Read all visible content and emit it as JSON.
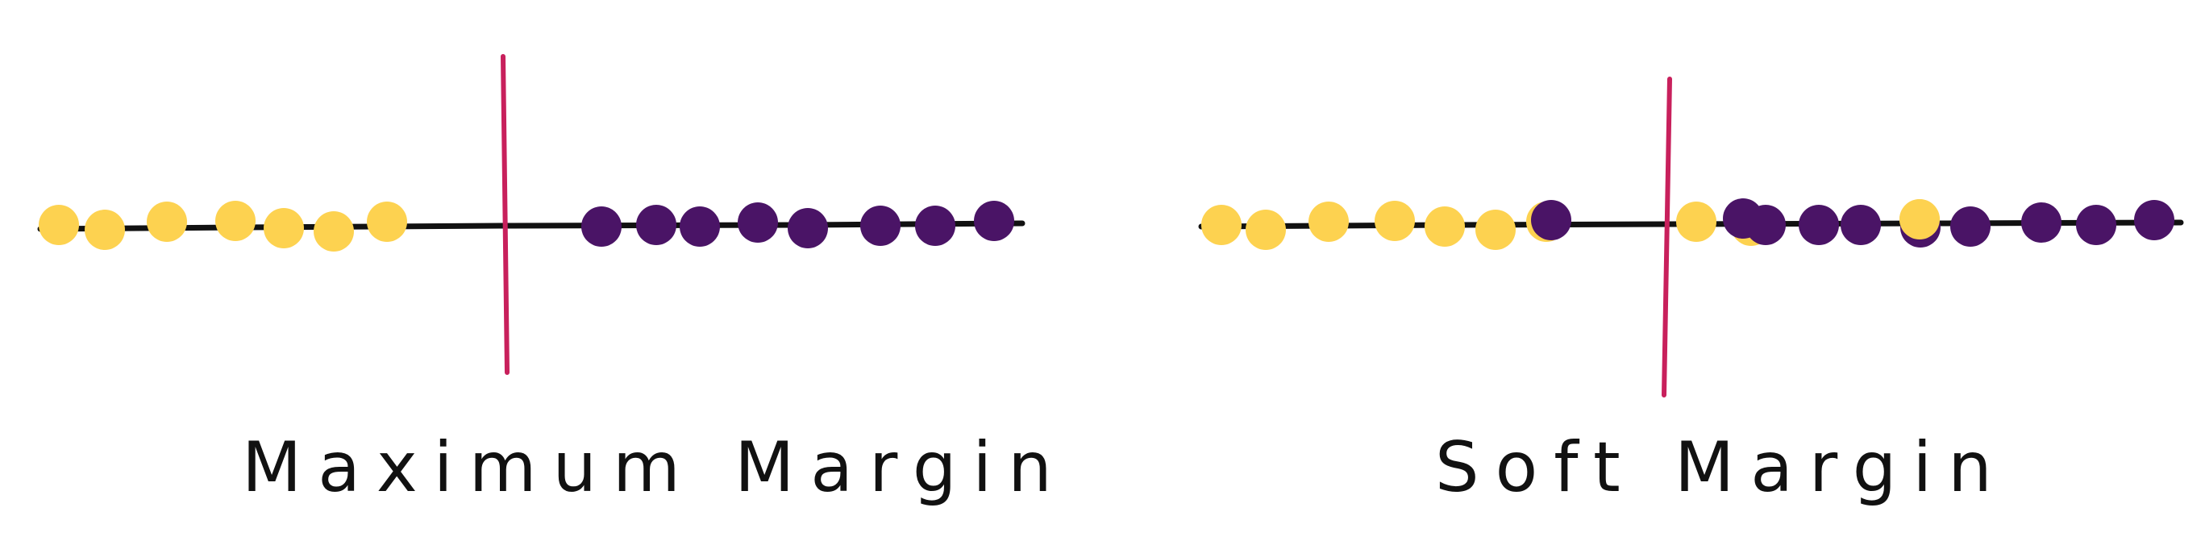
{
  "colors": {
    "yellow_class": "#fdd250",
    "purple_class": "#4a1466",
    "axis_line": "#111111",
    "separator": "#c8205c",
    "background": "#ffffff",
    "text": "#111111"
  },
  "panels": [
    {
      "id": "maximum-margin",
      "title": "Maximum Margin",
      "yellow_points": 7,
      "purple_points": 8,
      "separator": "between-classes"
    },
    {
      "id": "soft-margin",
      "title": "Soft Margin",
      "yellow_points": 10,
      "purple_points": 10,
      "separator": "allows-misclassification"
    }
  ]
}
